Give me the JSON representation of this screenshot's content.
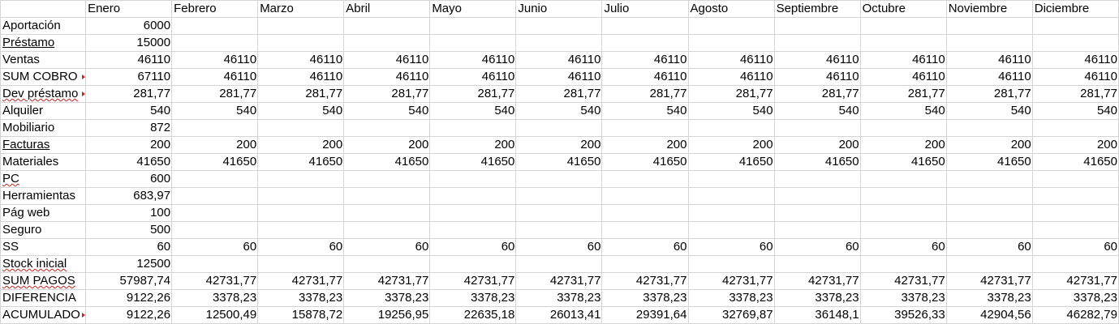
{
  "months": [
    "Enero",
    "Febrero",
    "Marzo",
    "Abril",
    "Mayo",
    "Junio",
    "Julio",
    "Agosto",
    "Septiembre",
    "Octubre",
    "Noviembre",
    "Diciembre"
  ],
  "rows": [
    {
      "label": "Aportación",
      "values": [
        "6000",
        "",
        "",
        "",
        "",
        "",
        "",
        "",
        "",
        "",
        "",
        ""
      ]
    },
    {
      "label": "Préstamo",
      "values": [
        "15000",
        "",
        "",
        "",
        "",
        "",
        "",
        "",
        "",
        "",
        "",
        ""
      ]
    },
    {
      "label": "Ventas",
      "values": [
        "46110",
        "46110",
        "46110",
        "46110",
        "46110",
        "46110",
        "46110",
        "46110",
        "46110",
        "46110",
        "46110",
        "46110"
      ]
    },
    {
      "label": "SUM COBRO",
      "values": [
        "67110",
        "46110",
        "46110",
        "46110",
        "46110",
        "46110",
        "46110",
        "46110",
        "46110",
        "46110",
        "46110",
        "46110"
      ]
    },
    {
      "label": "Dev préstamo",
      "values": [
        "281,77",
        "281,77",
        "281,77",
        "281,77",
        "281,77",
        "281,77",
        "281,77",
        "281,77",
        "281,77",
        "281,77",
        "281,77",
        "281,77"
      ]
    },
    {
      "label": "Alquiler",
      "values": [
        "540",
        "540",
        "540",
        "540",
        "540",
        "540",
        "540",
        "540",
        "540",
        "540",
        "540",
        "540"
      ]
    },
    {
      "label": "Mobiliario",
      "values": [
        "872",
        "",
        "",
        "",
        "",
        "",
        "",
        "",
        "",
        "",
        "",
        ""
      ]
    },
    {
      "label": "Facturas",
      "values": [
        "200",
        "200",
        "200",
        "200",
        "200",
        "200",
        "200",
        "200",
        "200",
        "200",
        "200",
        "200"
      ]
    },
    {
      "label": "Materiales",
      "values": [
        "41650",
        "41650",
        "41650",
        "41650",
        "41650",
        "41650",
        "41650",
        "41650",
        "41650",
        "41650",
        "41650",
        "41650"
      ]
    },
    {
      "label": "PC",
      "values": [
        "600",
        "",
        "",
        "",
        "",
        "",
        "",
        "",
        "",
        "",
        "",
        ""
      ]
    },
    {
      "label": "Herramientas",
      "values": [
        "683,97",
        "",
        "",
        "",
        "",
        "",
        "",
        "",
        "",
        "",
        "",
        ""
      ]
    },
    {
      "label": "Pág web",
      "values": [
        "100",
        "",
        "",
        "",
        "",
        "",
        "",
        "",
        "",
        "",
        "",
        ""
      ]
    },
    {
      "label": "Seguro",
      "values": [
        "500",
        "",
        "",
        "",
        "",
        "",
        "",
        "",
        "",
        "",
        "",
        ""
      ]
    },
    {
      "label": "SS",
      "values": [
        "60",
        "60",
        "60",
        "60",
        "60",
        "60",
        "60",
        "60",
        "60",
        "60",
        "60",
        "60"
      ]
    },
    {
      "label": "Stock inicial",
      "values": [
        "12500",
        "",
        "",
        "",
        "",
        "",
        "",
        "",
        "",
        "",
        "",
        ""
      ]
    },
    {
      "label": "SUM PAGOS",
      "values": [
        "57987,74",
        "42731,77",
        "42731,77",
        "42731,77",
        "42731,77",
        "42731,77",
        "42731,77",
        "42731,77",
        "42731,77",
        "42731,77",
        "42731,77",
        "42731,77"
      ]
    },
    {
      "label": "DIFERENCIA",
      "values": [
        "9122,26",
        "3378,23",
        "3378,23",
        "3378,23",
        "3378,23",
        "3378,23",
        "3378,23",
        "3378,23",
        "3378,23",
        "3378,23",
        "3378,23",
        "3378,23"
      ]
    },
    {
      "label": "ACUMULADO",
      "values": [
        "9122,26",
        "12500,49",
        "15878,72",
        "19256,95",
        "22635,18",
        "26013,41",
        "29391,64",
        "32769,87",
        "36148,1",
        "39526,33",
        "42904,56",
        "46282,79"
      ]
    }
  ]
}
